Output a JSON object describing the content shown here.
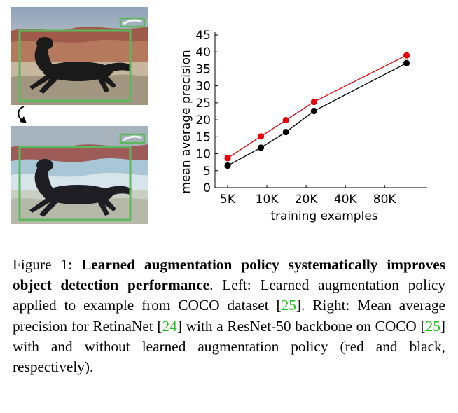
{
  "figure": {
    "images": {
      "original_alt": "",
      "augmented_alt": ""
    },
    "chart_data": {
      "type": "line",
      "ylabel": "mean average precision",
      "xlabel": "training examples",
      "yticks": [
        0,
        5,
        10,
        15,
        20,
        25,
        30,
        35,
        40,
        45
      ],
      "ylim": [
        0,
        45
      ],
      "xtick_labels": [
        "5K",
        "10K",
        "20K",
        "40K",
        "80K"
      ],
      "x_log_scale": true,
      "grid": false,
      "series": [
        {
          "color": "#e8000b",
          "x": [
            5000,
            9000,
            14000,
            23000,
            118000
          ],
          "values": [
            8.7,
            15.1,
            19.9,
            25.3,
            39.0
          ]
        },
        {
          "color": "#000000",
          "x": [
            5000,
            9000,
            14000,
            23000,
            118000
          ],
          "values": [
            6.5,
            11.8,
            16.4,
            22.6,
            36.7
          ]
        }
      ]
    },
    "caption": {
      "prefix": "Figure 1: ",
      "bold": "Learned augmentation policy systematically improves object detection performance",
      "t1": ". Left: Learned augmentation policy applied to example from COCO dataset [",
      "ref1": "25",
      "t2": "]. Right: Mean average precision for RetinaNet [",
      "ref2": "24",
      "t3": "] with a ResNet-50 backbone on COCO [",
      "ref3": "25",
      "t4": "] with and without learned augmentation policy (red and black, respectively)."
    }
  }
}
